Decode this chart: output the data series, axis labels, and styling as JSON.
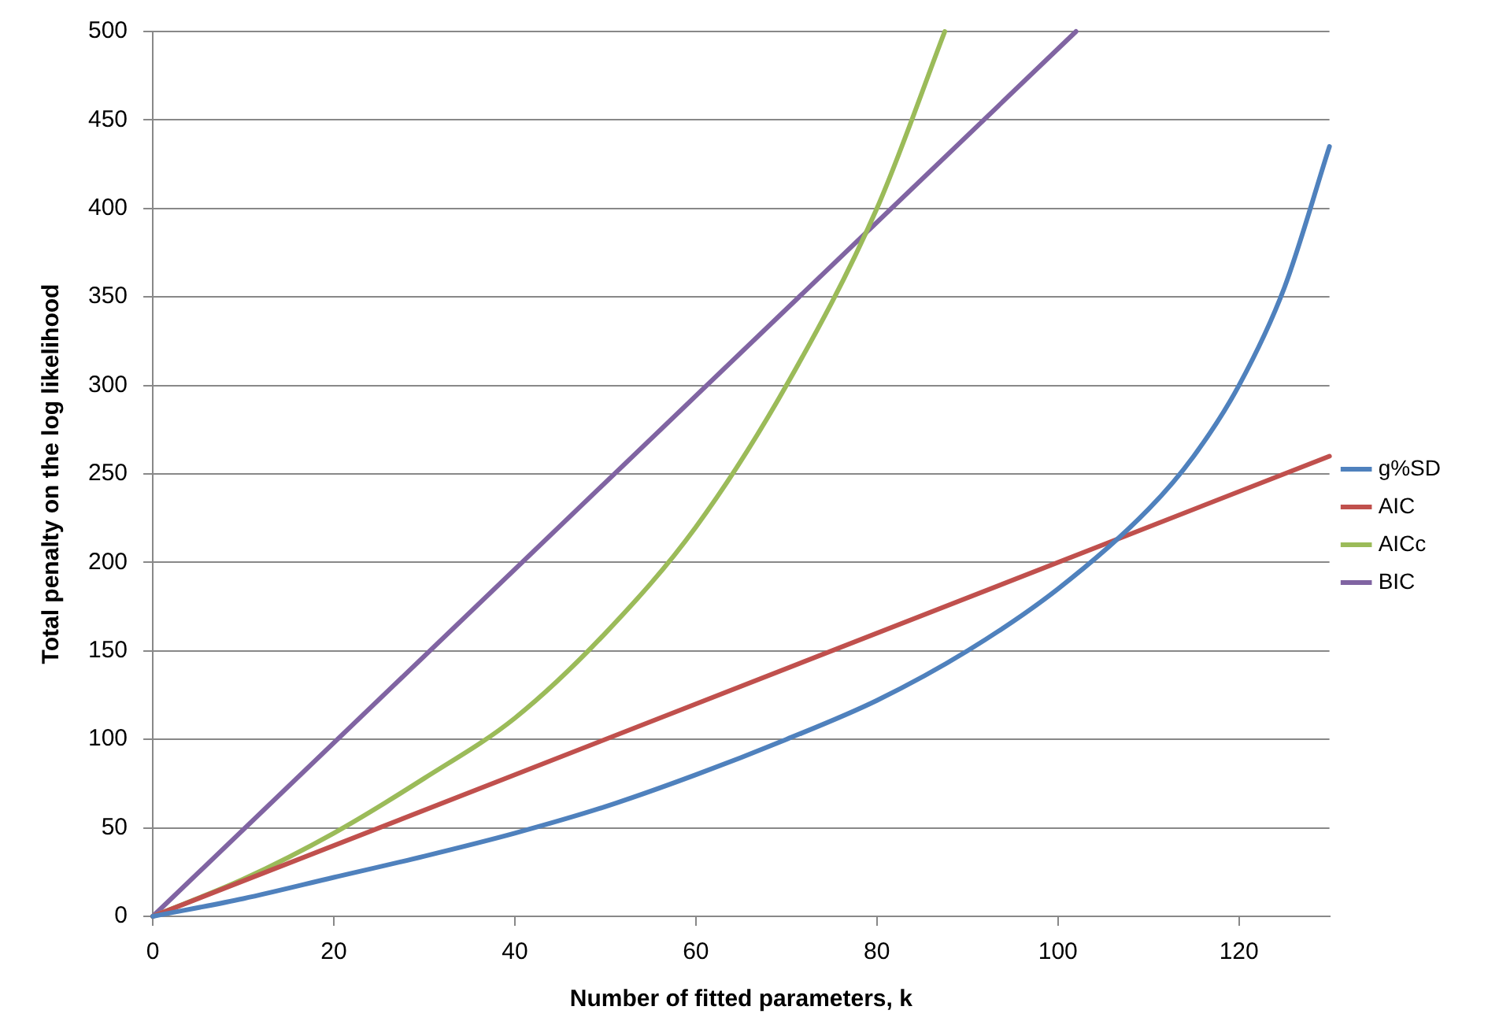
{
  "chart_data": {
    "type": "line",
    "xlabel": "Number of fitted parameters, k",
    "ylabel": "Total penalty on the log likelihood",
    "xlim": [
      0,
      130
    ],
    "xticks": [
      0,
      20,
      40,
      60,
      80,
      100,
      120
    ],
    "ylim": [
      0,
      500
    ],
    "yticks": [
      0,
      50,
      100,
      150,
      200,
      250,
      300,
      350,
      400,
      450,
      500
    ],
    "grid": "y",
    "legend": "right",
    "marker": "none",
    "line_style": "solid",
    "series": [
      {
        "name": "g%SD",
        "color": "#4f81bd",
        "x": [
          0,
          10,
          20,
          30,
          40,
          50,
          60,
          70,
          80,
          90,
          100,
          110,
          115,
          120,
          125,
          130
        ],
        "values": [
          0,
          10,
          22,
          34,
          47,
          62,
          80,
          100,
          122,
          150,
          185,
          230,
          260,
          300,
          355,
          435
        ]
      },
      {
        "name": "AIC",
        "color": "#c0504d",
        "x": [
          0,
          130
        ],
        "values": [
          0,
          260
        ]
      },
      {
        "name": "AICc",
        "color": "#9bbb59",
        "x": [
          0,
          10,
          20,
          30,
          40,
          50,
          60,
          70,
          80,
          87.5
        ],
        "values": [
          0,
          21,
          47,
          78,
          112,
          160,
          220,
          300,
          400,
          500
        ]
      },
      {
        "name": "BIC",
        "color": "#8064a2",
        "x": [
          0,
          102
        ],
        "values": [
          0,
          500
        ]
      }
    ]
  }
}
